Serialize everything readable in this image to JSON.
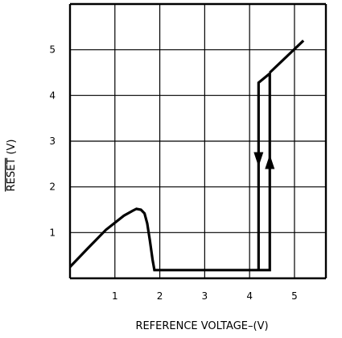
{
  "chart_data": {
    "type": "line",
    "title": "",
    "xlabel": "REFERENCE VOLTAGE–(V)",
    "ylabel": "RESET (V)",
    "ylabel_overline_text": "RESET",
    "ylabel_unit": "(V)",
    "xlim": [
      0,
      5.7
    ],
    "ylim": [
      0,
      6
    ],
    "xticks": [
      1,
      2,
      3,
      4,
      5
    ],
    "yticks": [
      1,
      2,
      3,
      4,
      5
    ],
    "xtick_labels": [
      "1",
      "2",
      "3",
      "4",
      "5"
    ],
    "ytick_labels": [
      "1",
      "2",
      "3",
      "4",
      "5"
    ],
    "grid": true,
    "legend": "none",
    "series": [
      {
        "stroke": "#000000",
        "points": [
          [
            0,
            0.25
          ],
          [
            0.4,
            0.66
          ],
          [
            0.8,
            1.06
          ],
          [
            1.2,
            1.37
          ],
          [
            1.4,
            1.48
          ],
          [
            1.48,
            1.52
          ],
          [
            1.58,
            1.5
          ],
          [
            1.66,
            1.42
          ],
          [
            1.72,
            1.2
          ],
          [
            1.78,
            0.82
          ],
          [
            1.84,
            0.4
          ],
          [
            1.88,
            0.18
          ],
          [
            4.2,
            0.18
          ],
          [
            4.2,
            4.28
          ],
          [
            4.45,
            4.48
          ],
          [
            4.45,
            0.18
          ],
          [
            4.2,
            0.18
          ]
        ]
      },
      {
        "stroke": "#000000",
        "points": [
          [
            4.45,
            4.5
          ],
          [
            5.2,
            5.2
          ]
        ]
      }
    ],
    "arrows": [
      {
        "x": 4.2,
        "y": 2.6,
        "direction": "down"
      },
      {
        "x": 4.45,
        "y": 2.55,
        "direction": "up"
      }
    ]
  }
}
